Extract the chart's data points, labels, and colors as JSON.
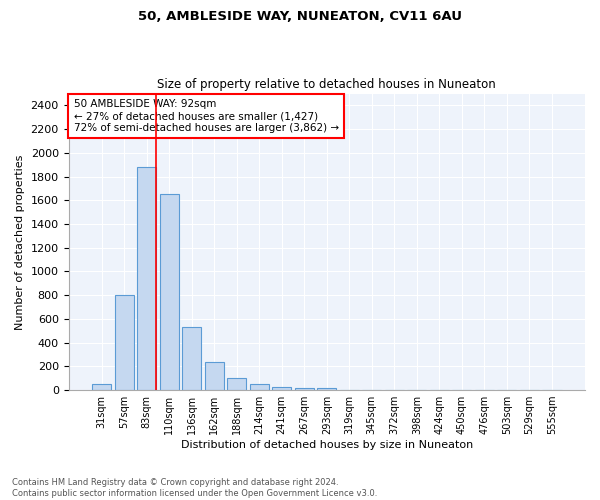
{
  "title1": "50, AMBLESIDE WAY, NUNEATON, CV11 6AU",
  "title2": "Size of property relative to detached houses in Nuneaton",
  "xlabel": "Distribution of detached houses by size in Nuneaton",
  "ylabel": "Number of detached properties",
  "bar_color": "#c5d8f0",
  "bar_edge_color": "#5b9bd5",
  "bg_color": "#eef3fb",
  "grid_color": "white",
  "bins": [
    "31sqm",
    "57sqm",
    "83sqm",
    "110sqm",
    "136sqm",
    "162sqm",
    "188sqm",
    "214sqm",
    "241sqm",
    "267sqm",
    "293sqm",
    "319sqm",
    "345sqm",
    "372sqm",
    "398sqm",
    "424sqm",
    "450sqm",
    "476sqm",
    "503sqm",
    "529sqm",
    "555sqm"
  ],
  "values": [
    50,
    800,
    1880,
    1650,
    530,
    235,
    105,
    55,
    30,
    20,
    20,
    0,
    0,
    0,
    0,
    0,
    0,
    0,
    0,
    0,
    0
  ],
  "red_line_bin": 2,
  "annotation_line1": "50 AMBLESIDE WAY: 92sqm",
  "annotation_line2": "← 27% of detached houses are smaller (1,427)",
  "annotation_line3": "72% of semi-detached houses are larger (3,862) →",
  "ylim": [
    0,
    2500
  ],
  "yticks": [
    0,
    200,
    400,
    600,
    800,
    1000,
    1200,
    1400,
    1600,
    1800,
    2000,
    2200,
    2400
  ],
  "footer1": "Contains HM Land Registry data © Crown copyright and database right 2024.",
  "footer2": "Contains public sector information licensed under the Open Government Licence v3.0."
}
